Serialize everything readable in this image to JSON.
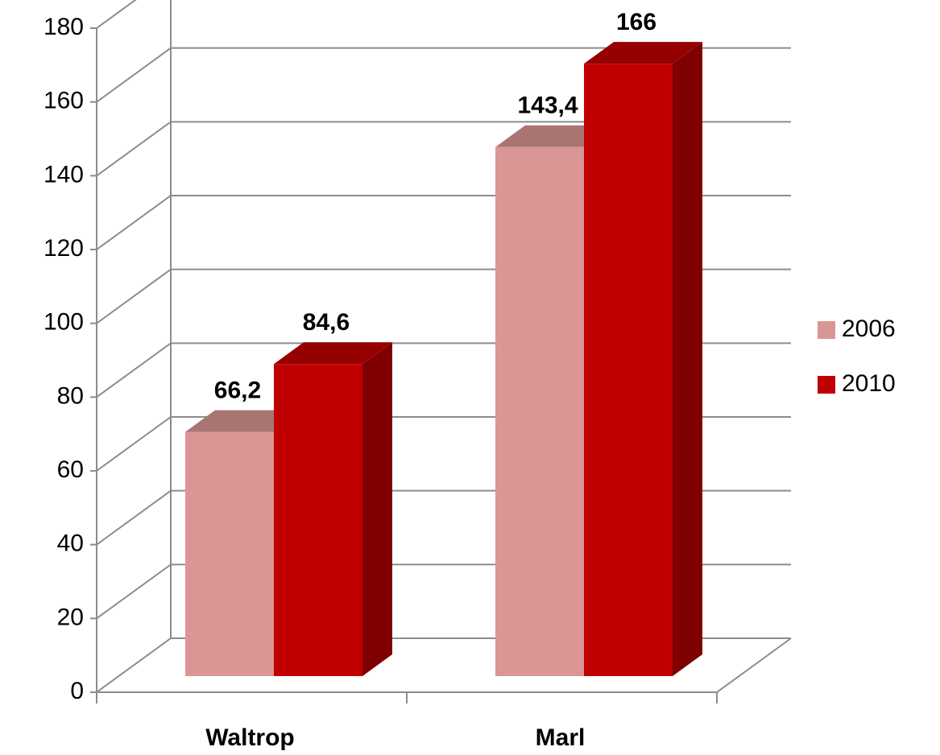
{
  "chart_data": {
    "type": "bar3d",
    "categories": [
      "Waltrop",
      "Marl"
    ],
    "series": [
      {
        "name": "2006",
        "color": "#d99694",
        "values": [
          66.2,
          143.4
        ],
        "value_labels": [
          "66,2",
          "143,4"
        ]
      },
      {
        "name": "2010",
        "color": "#c00000",
        "values": [
          84.6,
          166
        ],
        "value_labels": [
          "84,6",
          "166"
        ]
      }
    ],
    "ylim": [
      0,
      180
    ],
    "yticks": [
      0,
      20,
      40,
      60,
      80,
      100,
      120,
      140,
      160,
      180
    ],
    "grid": true,
    "legend": "right"
  }
}
